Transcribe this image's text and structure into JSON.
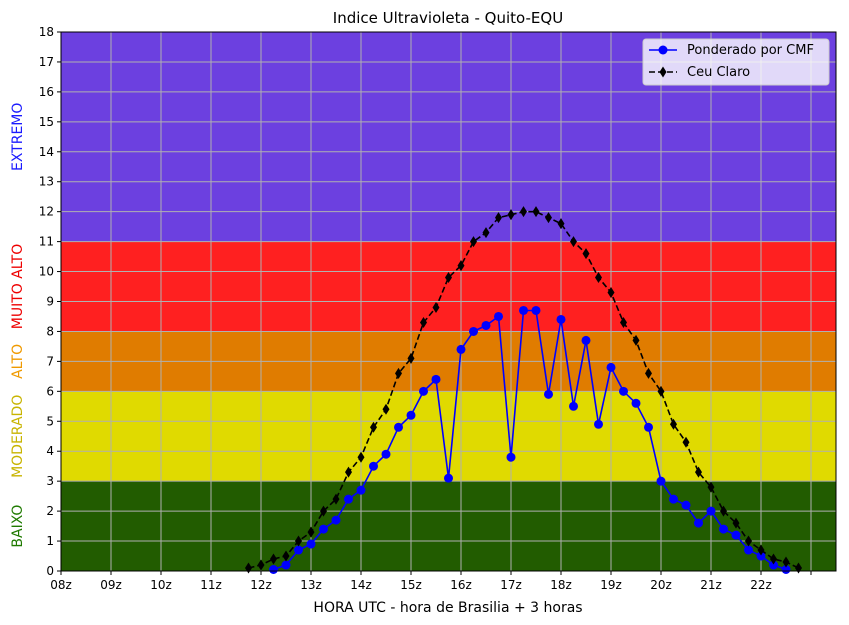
{
  "chart_data": {
    "type": "line",
    "title": "Indice Ultravioleta - Quito-EQU",
    "xlabel": "HORA UTC - hora de Brasilia + 3 horas",
    "ylabel": "",
    "xlim": [
      8,
      23.5
    ],
    "ylim": [
      0,
      18
    ],
    "x_ticks": [
      8,
      9,
      10,
      11,
      12,
      13,
      14,
      15,
      16,
      17,
      18,
      19,
      20,
      21,
      22,
      23
    ],
    "x_tick_labels": [
      "08z",
      "09z",
      "10z",
      "11z",
      "12z",
      "13z",
      "14z",
      "15z",
      "16z",
      "17z",
      "18z",
      "19z",
      "20z",
      "21z",
      "22z",
      ""
    ],
    "y_ticks": [
      0,
      1,
      2,
      3,
      4,
      5,
      6,
      7,
      8,
      9,
      10,
      11,
      12,
      13,
      14,
      15,
      16,
      17,
      18
    ],
    "y_tick_labels": [
      "0",
      "1",
      "2",
      "3",
      "4",
      "5",
      "6",
      "7",
      "8",
      "9",
      "10",
      "11",
      "12",
      "13",
      "14",
      "15",
      "16",
      "17",
      "18"
    ],
    "grid": true,
    "legend_position": "top-right",
    "bands": [
      {
        "label": "BAIXO",
        "from": 0,
        "to": 3,
        "color": "#225c00",
        "label_color": "#1f7a00"
      },
      {
        "label": "MODERADO",
        "from": 3,
        "to": 6,
        "color": "#e0da00",
        "label_color": "#c8b400"
      },
      {
        "label": "ALTO",
        "from": 6,
        "to": 8,
        "color": "#e07c00",
        "label_color": "#f09a00"
      },
      {
        "label": "MUITO ALTO",
        "from": 8,
        "to": 11,
        "color": "#ff2020",
        "label_color": "#ee0000"
      },
      {
        "label": "EXTREMO",
        "from": 11,
        "to": 18,
        "color": "#6c40e0",
        "label_color": "#1a1aff"
      }
    ],
    "series": [
      {
        "name": "Ponderado por CMF",
        "color": "#0000ff",
        "marker": "circle",
        "line_style": "solid",
        "points": [
          [
            12.25,
            0.05
          ],
          [
            12.5,
            0.2
          ],
          [
            12.75,
            0.7
          ],
          [
            13.0,
            0.9
          ],
          [
            13.25,
            1.4
          ],
          [
            13.5,
            1.7
          ],
          [
            13.75,
            2.4
          ],
          [
            14.0,
            2.7
          ],
          [
            14.25,
            3.5
          ],
          [
            14.5,
            3.9
          ],
          [
            14.75,
            4.8
          ],
          [
            15.0,
            5.2
          ],
          [
            15.25,
            6.0
          ],
          [
            15.5,
            6.4
          ],
          [
            15.75,
            3.1
          ],
          [
            16.0,
            7.4
          ],
          [
            16.25,
            8.0
          ],
          [
            16.5,
            8.2
          ],
          [
            16.75,
            8.5
          ],
          [
            17.0,
            3.8
          ],
          [
            17.25,
            8.7
          ],
          [
            17.5,
            8.7
          ],
          [
            17.75,
            5.9
          ],
          [
            18.0,
            8.4
          ],
          [
            18.25,
            5.5
          ],
          [
            18.5,
            7.7
          ],
          [
            18.75,
            4.9
          ],
          [
            19.0,
            6.8
          ],
          [
            19.25,
            6.0
          ],
          [
            19.5,
            5.6
          ],
          [
            19.75,
            4.8
          ],
          [
            20.0,
            3.0
          ],
          [
            20.25,
            2.4
          ],
          [
            20.5,
            2.2
          ],
          [
            20.75,
            1.6
          ],
          [
            21.0,
            2.0
          ],
          [
            21.25,
            1.4
          ],
          [
            21.5,
            1.2
          ],
          [
            21.75,
            0.7
          ],
          [
            22.0,
            0.5
          ],
          [
            22.25,
            0.2
          ],
          [
            22.5,
            0.05
          ]
        ]
      },
      {
        "name": "Ceu Claro",
        "color": "#000000",
        "marker": "diamond",
        "line_style": "dashed",
        "points": [
          [
            11.75,
            0.1
          ],
          [
            12.0,
            0.2
          ],
          [
            12.25,
            0.4
          ],
          [
            12.5,
            0.5
          ],
          [
            12.75,
            1.0
          ],
          [
            13.0,
            1.3
          ],
          [
            13.25,
            2.0
          ],
          [
            13.5,
            2.4
          ],
          [
            13.75,
            3.3
          ],
          [
            14.0,
            3.8
          ],
          [
            14.25,
            4.8
          ],
          [
            14.5,
            5.4
          ],
          [
            14.75,
            6.6
          ],
          [
            15.0,
            7.1
          ],
          [
            15.25,
            8.3
          ],
          [
            15.5,
            8.8
          ],
          [
            15.75,
            9.8
          ],
          [
            16.0,
            10.2
          ],
          [
            16.25,
            11.0
          ],
          [
            16.5,
            11.3
          ],
          [
            16.75,
            11.8
          ],
          [
            17.0,
            11.9
          ],
          [
            17.25,
            12.0
          ],
          [
            17.5,
            12.0
          ],
          [
            17.75,
            11.8
          ],
          [
            18.0,
            11.6
          ],
          [
            18.25,
            11.0
          ],
          [
            18.5,
            10.6
          ],
          [
            18.75,
            9.8
          ],
          [
            19.0,
            9.3
          ],
          [
            19.25,
            8.3
          ],
          [
            19.5,
            7.7
          ],
          [
            19.75,
            6.6
          ],
          [
            20.0,
            6.0
          ],
          [
            20.25,
            4.9
          ],
          [
            20.5,
            4.3
          ],
          [
            20.75,
            3.3
          ],
          [
            21.0,
            2.8
          ],
          [
            21.25,
            2.0
          ],
          [
            21.5,
            1.6
          ],
          [
            21.75,
            1.0
          ],
          [
            22.0,
            0.7
          ],
          [
            22.25,
            0.4
          ],
          [
            22.5,
            0.3
          ],
          [
            22.75,
            0.1
          ]
        ]
      }
    ]
  }
}
